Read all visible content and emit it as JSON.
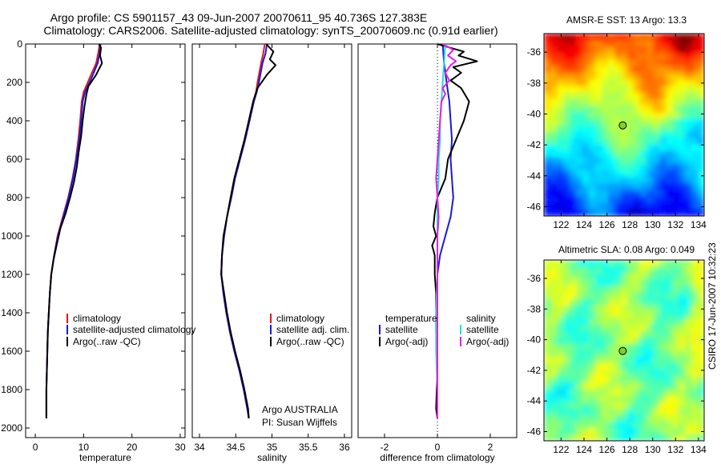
{
  "header": {
    "line1": "Argo profile: CS 5901157_43 09-Jun-2007 20070611_95 40.736S 127.383E",
    "line2": "Climatology: CARS2006. Satellite-adjusted climatology: synTS_20070609.nc (0.91d earlier)"
  },
  "side_text": "CSIRO 17-Jun-2007 10:32:23",
  "chart_data": [
    {
      "type": "line",
      "id": "temperature",
      "xlabel": "temperature",
      "ylabel": "",
      "xlim": [
        -2,
        31
      ],
      "ylim": [
        2050,
        0
      ],
      "xticks": [
        0,
        10,
        20,
        30
      ],
      "yticks": [
        0,
        200,
        400,
        600,
        800,
        1000,
        1200,
        1400,
        1600,
        1800,
        2000
      ],
      "legend": [
        "climatology",
        "satellite-adjusted climatology",
        "Argo(..raw -QC)"
      ],
      "series": [
        {
          "name": "climatology",
          "color": "#e8141e",
          "points": [
            [
              13.3,
              0
            ],
            [
              13.0,
              50
            ],
            [
              12.6,
              100
            ],
            [
              11.2,
              180
            ],
            [
              10.0,
              250
            ],
            [
              9.6,
              300
            ],
            [
              9.3,
              400
            ],
            [
              8.9,
              500
            ],
            [
              8.4,
              600
            ],
            [
              7.7,
              700
            ],
            [
              6.8,
              800
            ],
            [
              5.7,
              900
            ],
            [
              4.6,
              1000
            ],
            [
              3.9,
              1100
            ],
            [
              3.3,
              1200
            ],
            [
              3.0,
              1300
            ],
            [
              2.8,
              1400
            ],
            [
              2.6,
              1500
            ],
            [
              2.5,
              1600
            ],
            [
              2.4,
              1700
            ],
            [
              2.3,
              1800
            ],
            [
              2.3,
              1900
            ],
            [
              2.3,
              1950
            ]
          ]
        },
        {
          "name": "satellite-adjusted climatology",
          "color": "#1a1adb",
          "points": [
            [
              13.5,
              0
            ],
            [
              13.3,
              50
            ],
            [
              12.9,
              100
            ],
            [
              11.6,
              180
            ],
            [
              10.3,
              250
            ],
            [
              9.8,
              300
            ],
            [
              9.5,
              400
            ],
            [
              9.1,
              500
            ],
            [
              8.5,
              600
            ],
            [
              7.8,
              700
            ],
            [
              6.9,
              800
            ],
            [
              5.8,
              900
            ],
            [
              4.7,
              1000
            ],
            [
              3.9,
              1100
            ],
            [
              3.3,
              1200
            ],
            [
              3.0,
              1300
            ],
            [
              2.8,
              1400
            ],
            [
              2.6,
              1500
            ],
            [
              2.5,
              1600
            ],
            [
              2.4,
              1700
            ],
            [
              2.3,
              1800
            ],
            [
              2.3,
              1900
            ],
            [
              2.3,
              1950
            ]
          ]
        },
        {
          "name": "Argo(..raw -QC)",
          "color": "#000000",
          "points": [
            [
              13.2,
              0
            ],
            [
              13.6,
              20
            ],
            [
              13.4,
              60
            ],
            [
              13.8,
              100
            ],
            [
              12.6,
              160
            ],
            [
              11.0,
              220
            ],
            [
              10.6,
              260
            ],
            [
              10.2,
              320
            ],
            [
              9.8,
              400
            ],
            [
              9.5,
              480
            ],
            [
              9.0,
              560
            ],
            [
              8.6,
              640
            ],
            [
              8.0,
              720
            ],
            [
              7.2,
              800
            ],
            [
              6.3,
              880
            ],
            [
              5.2,
              960
            ],
            [
              4.4,
              1050
            ],
            [
              3.8,
              1120
            ],
            [
              3.3,
              1200
            ],
            [
              3.0,
              1300
            ],
            [
              2.8,
              1400
            ],
            [
              2.6,
              1500
            ],
            [
              2.5,
              1600
            ],
            [
              2.4,
              1700
            ],
            [
              2.3,
              1800
            ],
            [
              2.3,
              1900
            ],
            [
              2.3,
              1950
            ]
          ]
        }
      ]
    },
    {
      "type": "line",
      "id": "salinity",
      "xlabel": "salinity",
      "ylabel": "",
      "xlim": [
        33.9,
        36.1
      ],
      "ylim": [
        2050,
        0
      ],
      "xticks": [
        34,
        34.5,
        35,
        35.5,
        36
      ],
      "yticks": [],
      "legend": [
        "climatology",
        "satellite adj. clim.",
        "Argo(..raw -QC)"
      ],
      "annotation": [
        "Argo AUSTRALIA",
        "PI: Susan Wijffels"
      ],
      "series": [
        {
          "name": "climatology",
          "color": "#e8141e",
          "points": [
            [
              34.9,
              0
            ],
            [
              34.88,
              50
            ],
            [
              34.85,
              100
            ],
            [
              34.8,
              200
            ],
            [
              34.78,
              250
            ],
            [
              34.74,
              300
            ],
            [
              34.68,
              400
            ],
            [
              34.62,
              500
            ],
            [
              34.55,
              600
            ],
            [
              34.48,
              700
            ],
            [
              34.43,
              800
            ],
            [
              34.38,
              900
            ],
            [
              34.34,
              1000
            ],
            [
              34.31,
              1100
            ],
            [
              34.3,
              1200
            ],
            [
              34.33,
              1300
            ],
            [
              34.37,
              1400
            ],
            [
              34.42,
              1500
            ],
            [
              34.48,
              1600
            ],
            [
              34.55,
              1700
            ],
            [
              34.61,
              1800
            ],
            [
              34.66,
              1900
            ],
            [
              34.68,
              1950
            ]
          ]
        },
        {
          "name": "satellite adj. clim.",
          "color": "#1a1adb",
          "points": [
            [
              34.93,
              0
            ],
            [
              34.91,
              50
            ],
            [
              34.87,
              100
            ],
            [
              34.82,
              200
            ],
            [
              34.79,
              250
            ],
            [
              34.75,
              300
            ],
            [
              34.69,
              400
            ],
            [
              34.63,
              500
            ],
            [
              34.56,
              600
            ],
            [
              34.49,
              700
            ],
            [
              34.44,
              800
            ],
            [
              34.38,
              900
            ],
            [
              34.34,
              1000
            ],
            [
              34.31,
              1100
            ],
            [
              34.3,
              1200
            ],
            [
              34.33,
              1300
            ],
            [
              34.37,
              1400
            ],
            [
              34.42,
              1500
            ],
            [
              34.48,
              1600
            ],
            [
              34.55,
              1700
            ],
            [
              34.61,
              1800
            ],
            [
              34.66,
              1900
            ],
            [
              34.68,
              1950
            ]
          ]
        },
        {
          "name": "Argo(..raw -QC)",
          "color": "#000000",
          "points": [
            [
              34.92,
              0
            ],
            [
              35.02,
              40
            ],
            [
              34.97,
              80
            ],
            [
              35.05,
              110
            ],
            [
              34.93,
              160
            ],
            [
              34.8,
              230
            ],
            [
              34.74,
              300
            ],
            [
              34.68,
              400
            ],
            [
              34.62,
              500
            ],
            [
              34.55,
              600
            ],
            [
              34.48,
              700
            ],
            [
              34.43,
              800
            ],
            [
              34.38,
              900
            ],
            [
              34.33,
              1000
            ],
            [
              34.31,
              1100
            ],
            [
              34.3,
              1200
            ],
            [
              34.34,
              1300
            ],
            [
              34.38,
              1400
            ],
            [
              34.43,
              1500
            ],
            [
              34.49,
              1600
            ],
            [
              34.56,
              1700
            ],
            [
              34.62,
              1800
            ],
            [
              34.67,
              1900
            ],
            [
              34.68,
              1950
            ]
          ]
        }
      ]
    },
    {
      "type": "line",
      "id": "difference",
      "xlabel": "difference from climatology",
      "ylabel": "",
      "xlim": [
        -3,
        3
      ],
      "ylim": [
        2050,
        0
      ],
      "xticks": [
        -2,
        0,
        2
      ],
      "yticks": [],
      "legend_left_title": "temperature",
      "legend_right_title": "salinity",
      "legend": [
        "satellite",
        "Argo(-adj)",
        "satellite",
        "Argo(-adj)"
      ],
      "series": [
        {
          "name": "temperature satellite",
          "color": "#1a1adb",
          "points": [
            [
              0.2,
              0
            ],
            [
              0.25,
              100
            ],
            [
              0.35,
              200
            ],
            [
              0.45,
              300
            ],
            [
              0.5,
              400
            ],
            [
              0.55,
              500
            ],
            [
              0.5,
              600
            ],
            [
              0.55,
              700
            ],
            [
              0.6,
              800
            ],
            [
              0.5,
              900
            ],
            [
              0.3,
              1000
            ],
            [
              0.1,
              1100
            ],
            [
              0.0,
              1200
            ],
            [
              0.0,
              1400
            ],
            [
              0.0,
              1600
            ],
            [
              0.0,
              1800
            ],
            [
              0.0,
              1950
            ]
          ]
        },
        {
          "name": "temperature Argo(-adj)",
          "color": "#000000",
          "points": [
            [
              0.0,
              0
            ],
            [
              0.5,
              20
            ],
            [
              1.0,
              40
            ],
            [
              0.8,
              60
            ],
            [
              1.5,
              90
            ],
            [
              0.6,
              120
            ],
            [
              0.9,
              150
            ],
            [
              0.5,
              190
            ],
            [
              0.9,
              230
            ],
            [
              1.2,
              300
            ],
            [
              1.0,
              400
            ],
            [
              0.7,
              500
            ],
            [
              0.4,
              600
            ],
            [
              0.3,
              700
            ],
            [
              0.0,
              800
            ],
            [
              -0.1,
              880
            ],
            [
              -0.15,
              950
            ],
            [
              -0.05,
              1000
            ],
            [
              -0.2,
              1050
            ],
            [
              -0.1,
              1100
            ],
            [
              -0.1,
              1200
            ],
            [
              -0.05,
              1300
            ],
            [
              -0.05,
              1500
            ],
            [
              0.0,
              1700
            ],
            [
              -0.05,
              1900
            ],
            [
              0.0,
              1950
            ]
          ]
        },
        {
          "name": "salinity satellite",
          "color": "#2ad8d8",
          "points": [
            [
              0.3,
              0
            ],
            [
              0.25,
              100
            ],
            [
              0.2,
              200
            ],
            [
              0.15,
              300
            ],
            [
              0.1,
              400
            ],
            [
              0.1,
              500
            ],
            [
              0.05,
              600
            ],
            [
              0.05,
              700
            ],
            [
              0.0,
              800
            ],
            [
              0.0,
              1000
            ],
            [
              0.0,
              1200
            ],
            [
              -0.05,
              1400
            ],
            [
              -0.05,
              1600
            ],
            [
              0.0,
              1800
            ],
            [
              0.0,
              1950
            ]
          ]
        },
        {
          "name": "salinity Argo(-adj)",
          "color": "#e020e0",
          "points": [
            [
              0.2,
              0
            ],
            [
              0.6,
              30
            ],
            [
              0.4,
              60
            ],
            [
              0.7,
              90
            ],
            [
              0.5,
              110
            ],
            [
              0.3,
              150
            ],
            [
              0.45,
              190
            ],
            [
              0.2,
              230
            ],
            [
              0.3,
              260
            ],
            [
              0.15,
              300
            ],
            [
              0.1,
              400
            ],
            [
              0.05,
              500
            ],
            [
              0.0,
              600
            ],
            [
              -0.05,
              700
            ],
            [
              0.0,
              800
            ],
            [
              0.05,
              900
            ],
            [
              0.0,
              1000
            ],
            [
              0.0,
              1200
            ],
            [
              0.0,
              1400
            ],
            [
              0.0,
              1600
            ],
            [
              0.0,
              1800
            ],
            [
              0.0,
              1950
            ]
          ]
        }
      ]
    },
    {
      "type": "heatmap",
      "id": "sst",
      "title": "AMSR-E SST: 13 Argo: 13.3",
      "xlim": [
        120.5,
        134.5
      ],
      "ylim": [
        -46.6,
        -34.8
      ],
      "xticks": [
        122,
        124,
        126,
        128,
        130,
        132,
        134
      ],
      "yticks": [
        -36,
        -38,
        -40,
        -42,
        -44,
        -46
      ],
      "marker": {
        "lon": 127.383,
        "lat": -40.736
      },
      "colormap": "jet"
    },
    {
      "type": "heatmap",
      "id": "sla",
      "title": "Altimetric SLA: 0.08 Argo: 0.049",
      "xlim": [
        120.5,
        134.5
      ],
      "ylim": [
        -46.6,
        -34.8
      ],
      "xticks": [
        122,
        124,
        126,
        128,
        130,
        132,
        134
      ],
      "yticks": [
        -36,
        -38,
        -40,
        -42,
        -44,
        -46
      ],
      "marker": {
        "lon": 127.383,
        "lat": -40.736
      },
      "colormap": "jet"
    }
  ]
}
